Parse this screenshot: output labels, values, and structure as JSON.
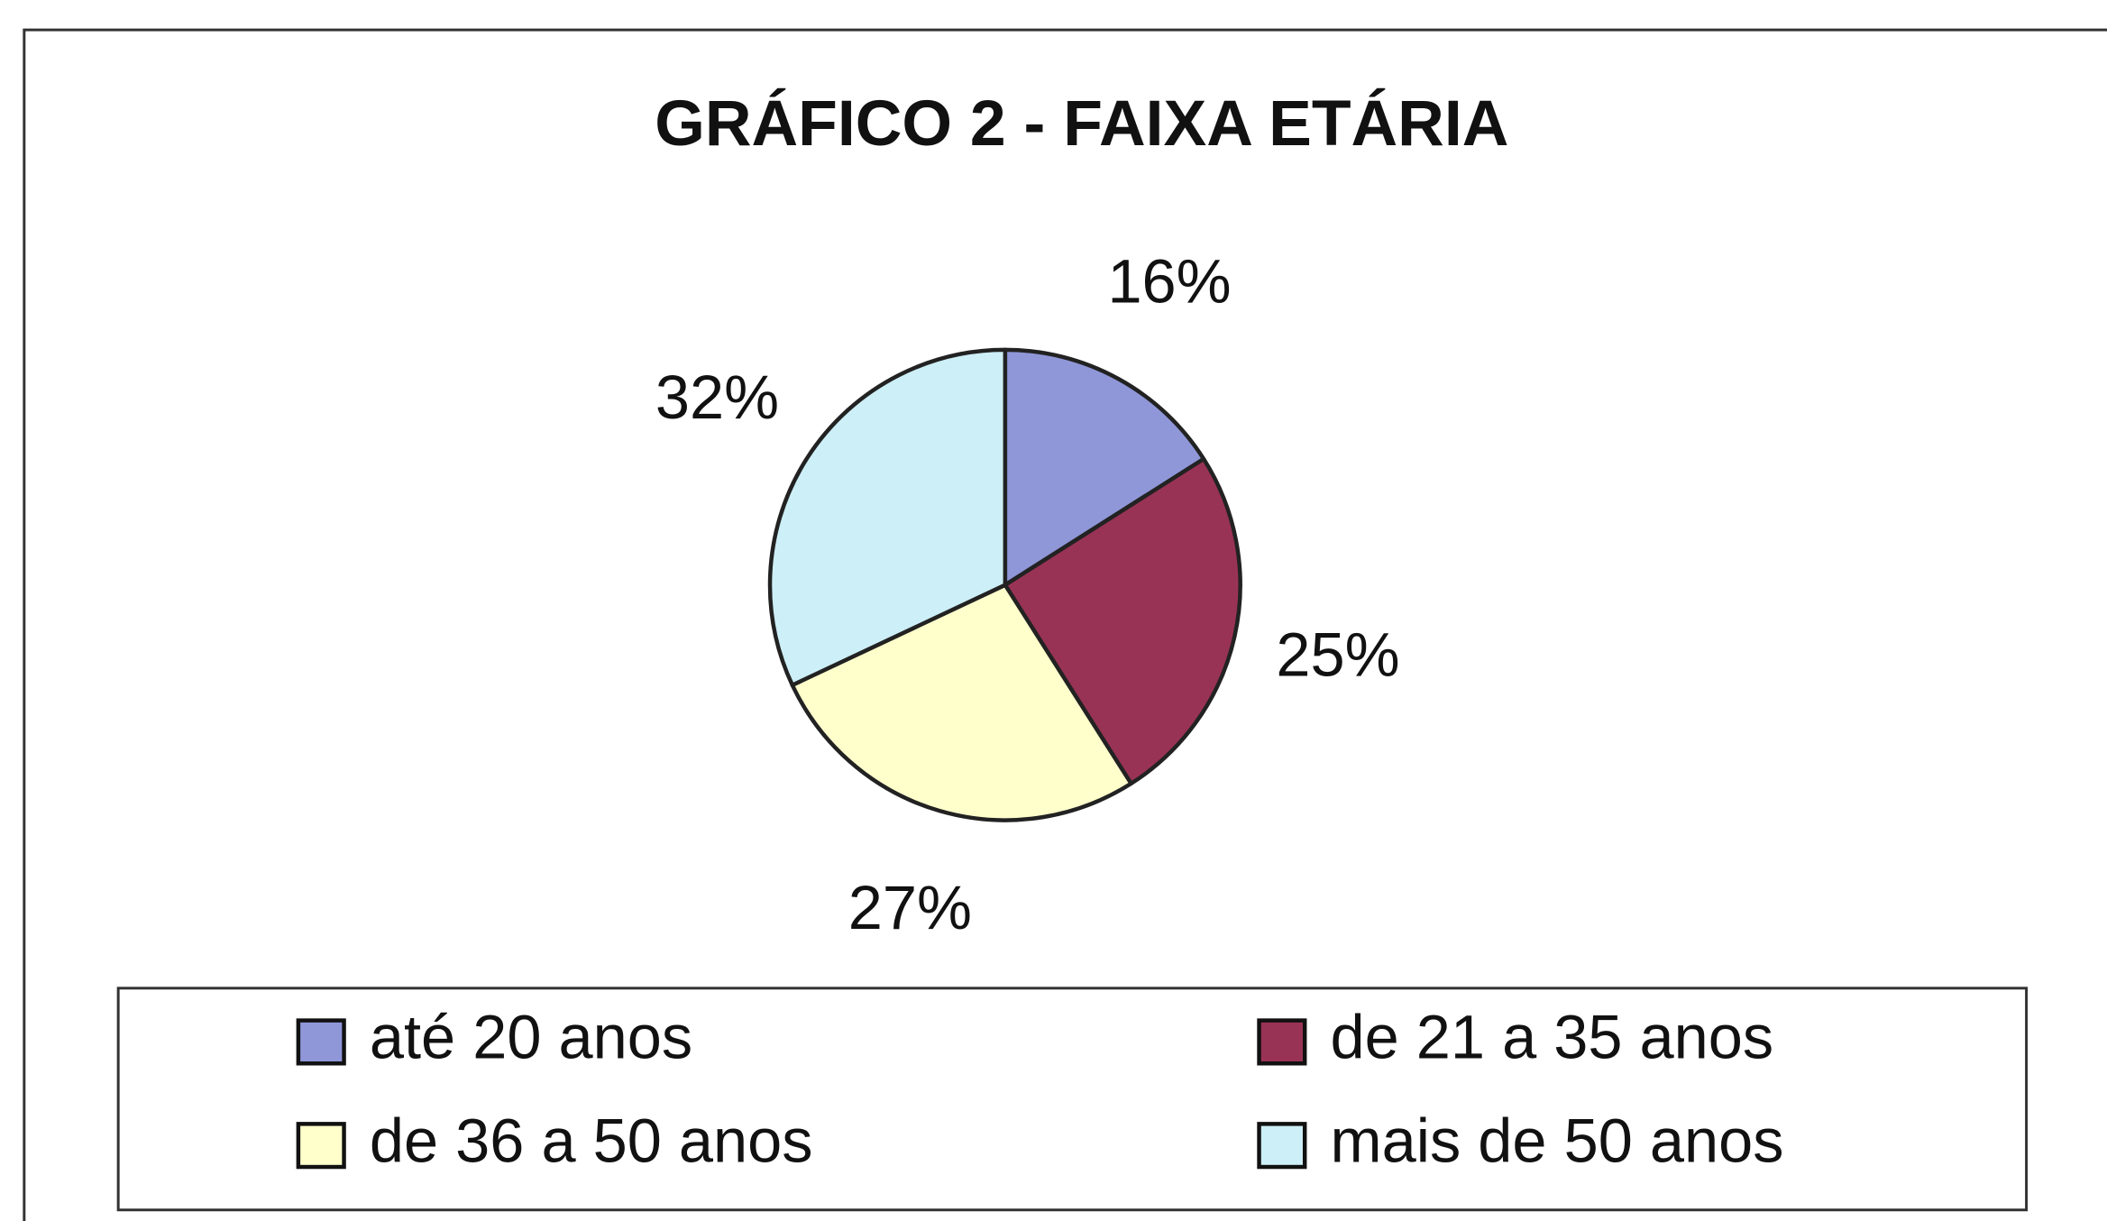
{
  "chart_data": {
    "type": "pie",
    "title": "GRÁFICO 2 - FAIXA ETÁRIA",
    "categories": [
      "até 20 anos",
      "de 21 a 35 anos",
      "de 36 a 50 anos",
      "mais de 50 anos"
    ],
    "values": [
      16,
      25,
      27,
      32
    ],
    "value_labels": [
      "16%",
      "25%",
      "27%",
      "32%"
    ],
    "colors": [
      "#8f97d8",
      "#993355",
      "#ffffcc",
      "#cdeff7"
    ],
    "legend": "bottom"
  }
}
